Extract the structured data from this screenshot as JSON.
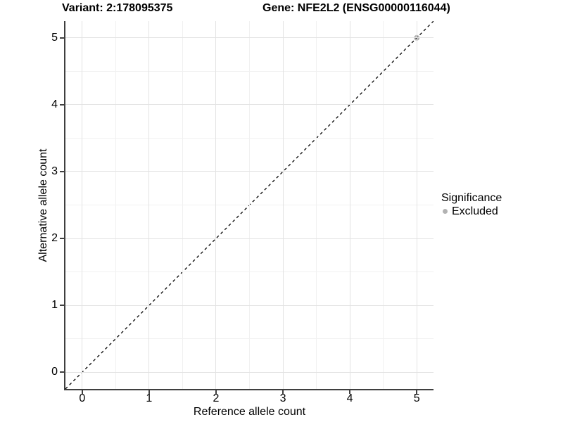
{
  "titles": {
    "variant": "Variant: 2:178095375",
    "gene": "Gene: NFE2L2 (ENSG00000116044)"
  },
  "axes": {
    "x": {
      "label": "Reference allele count",
      "tick_labels": [
        "0",
        "1",
        "2",
        "3",
        "4",
        "5"
      ]
    },
    "y": {
      "label": "Alternative allele count",
      "tick_labels": [
        "0",
        "1",
        "2",
        "3",
        "4",
        "5"
      ]
    }
  },
  "legend": {
    "title": "Significance",
    "items": [
      {
        "label": "Excluded",
        "color": "#b2b2b2"
      }
    ]
  },
  "colors": {
    "grid_major": "#e3e3e3",
    "grid_minor": "#f1f1f1",
    "axis_line": "#3f3f3f",
    "reference_line": "#000000",
    "point_excluded": "#b2b2b2",
    "background": "#ffffff"
  },
  "chart_data": {
    "type": "scatter",
    "title": "Variant: 2:178095375 — Gene: NFE2L2 (ENSG00000116044)",
    "xlabel": "Reference allele count",
    "ylabel": "Alternative allele count",
    "xlim": [
      -0.25,
      5.25
    ],
    "ylim": [
      -0.25,
      5.25
    ],
    "x_ticks": [
      0,
      1,
      2,
      3,
      4,
      5
    ],
    "y_ticks": [
      0,
      1,
      2,
      3,
      4,
      5
    ],
    "x_minor_ticks": [
      0.5,
      1.5,
      2.5,
      3.5,
      4.5
    ],
    "y_minor_ticks": [
      0.5,
      1.5,
      2.5,
      3.5,
      4.5
    ],
    "grid": "on",
    "legend_position": "right",
    "series": [
      {
        "name": "Excluded",
        "color": "#b2b2b2",
        "points": [
          {
            "x": 5,
            "y": 5
          }
        ]
      }
    ],
    "reference_line": {
      "slope": 1,
      "intercept": 0,
      "style": "dashed",
      "color": "#000000"
    }
  }
}
